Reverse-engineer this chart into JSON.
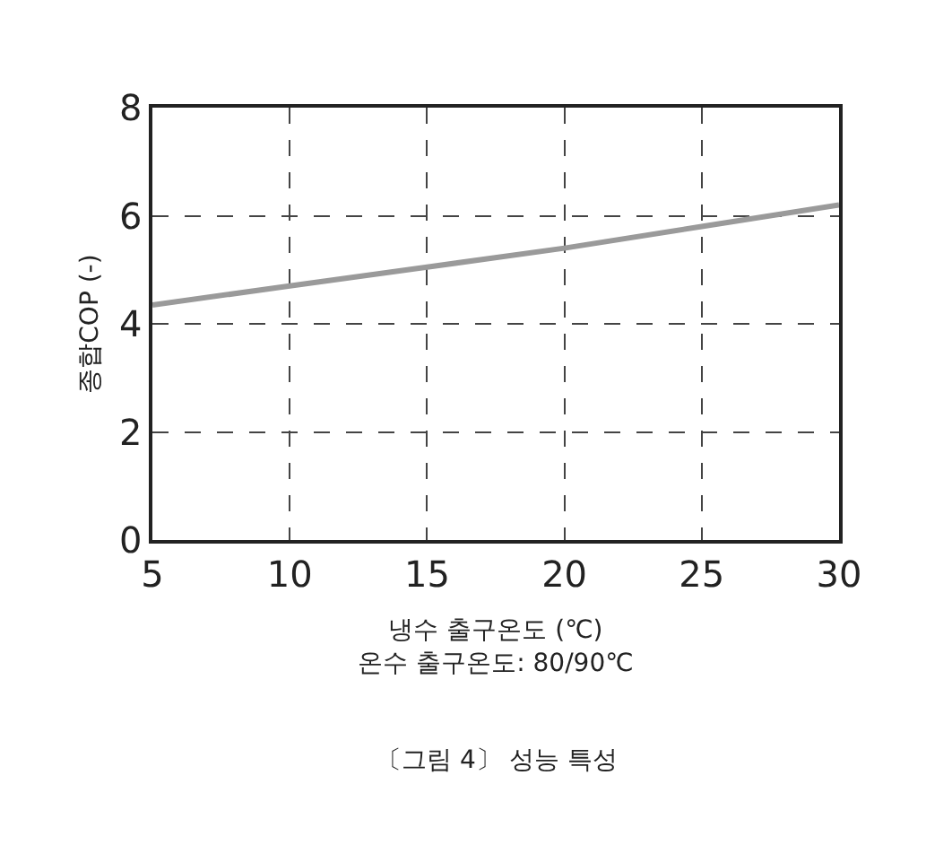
{
  "chart_data": {
    "type": "line",
    "xlabel": "냉수 출구온도 (℃)\n온수 출구온도: 80/90℃",
    "ylabel": "종합COP (-)",
    "x": [
      5,
      10,
      15,
      20,
      25,
      30
    ],
    "series": [
      {
        "color": "#9a9a9a",
        "values": [
          4.35,
          4.7,
          5.05,
          5.4,
          5.8,
          6.2
        ]
      }
    ],
    "xlim": [
      5,
      30
    ],
    "xticks": [
      5,
      10,
      15,
      20,
      25,
      30
    ],
    "ylim": [
      0,
      8
    ],
    "yticks": [
      0,
      2,
      4,
      6,
      8
    ],
    "grid": true,
    "line_style": "solid",
    "marker": "none",
    "annotations": [
      "〔그림 4〕 성능 특성"
    ]
  }
}
